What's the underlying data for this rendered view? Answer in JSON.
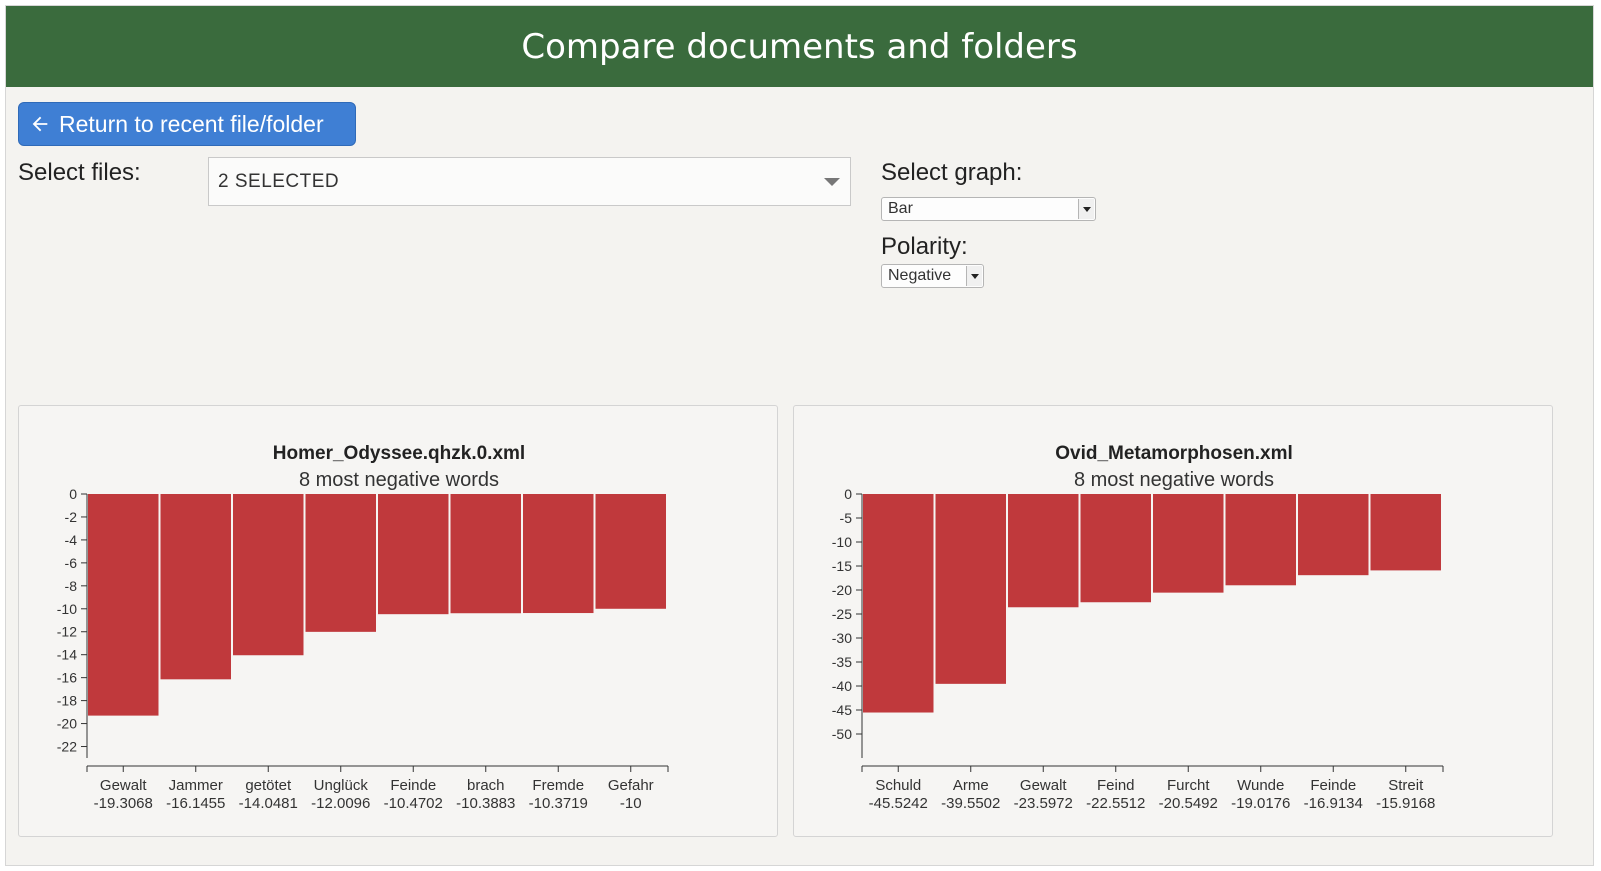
{
  "header": {
    "title": "Compare documents and folders"
  },
  "back_button": {
    "label": "Return to recent file/folder",
    "icon": "arrow-left-icon"
  },
  "select_files": {
    "label": "Select files:",
    "value": "2 SELECTED"
  },
  "select_graph": {
    "label": "Select graph:",
    "value": "Bar"
  },
  "polarity": {
    "label": "Polarity:",
    "value": "Negative"
  },
  "colors": {
    "header": "#3a6b3d",
    "button": "#3f7fd4",
    "bar": "#c0393c"
  },
  "chart_data": [
    {
      "type": "bar",
      "title": "Homer_Odyssee.qhzk.0.xml",
      "subtitle": "8 most negative words",
      "categories": [
        "Gewalt",
        "Jammer",
        "getötet",
        "Unglück",
        "Feinde",
        "brach",
        "Fremde",
        "Gefahr"
      ],
      "value_labels": [
        "-19.3068",
        "-16.1455",
        "-14.0481",
        "-12.0096",
        "-10.4702",
        "-10.3883",
        "-10.3719",
        "-10"
      ],
      "values": [
        -19.3068,
        -16.1455,
        -14.0481,
        -12.0096,
        -10.4702,
        -10.3883,
        -10.3719,
        -10
      ],
      "ylim": [
        -23,
        0
      ],
      "yticks": [
        0,
        -2,
        -4,
        -6,
        -8,
        -10,
        -12,
        -14,
        -16,
        -18,
        -20,
        -22
      ]
    },
    {
      "type": "bar",
      "title": "Ovid_Metamorphosen.xml",
      "subtitle": "8 most negative words",
      "categories": [
        "Schuld",
        "Arme",
        "Gewalt",
        "Feind",
        "Furcht",
        "Wunde",
        "Feinde",
        "Streit"
      ],
      "value_labels": [
        "-45.5242",
        "-39.5502",
        "-23.5972",
        "-22.5512",
        "-20.5492",
        "-19.0176",
        "-16.9134",
        "-15.9168"
      ],
      "values": [
        -45.5242,
        -39.5502,
        -23.5972,
        -22.5512,
        -20.5492,
        -19.0176,
        -16.9134,
        -15.9168
      ],
      "ylim": [
        -55,
        0
      ],
      "yticks": [
        0,
        -5,
        -10,
        -15,
        -20,
        -25,
        -30,
        -35,
        -40,
        -45,
        -50
      ]
    }
  ]
}
